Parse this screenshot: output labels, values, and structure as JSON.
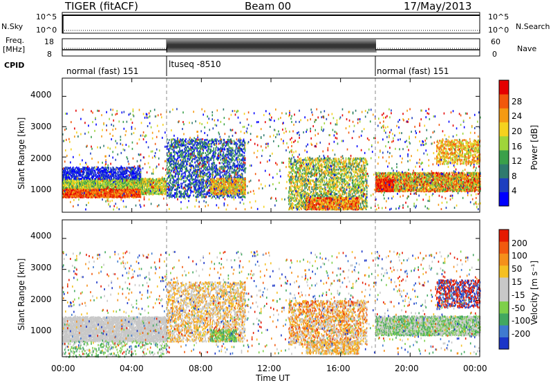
{
  "header": {
    "title_left": "TIGER (fitACF)",
    "title_center": "Beam 00",
    "title_right": "17/May/2013"
  },
  "nsky_panel": {
    "label": "N.Sky",
    "ticks_left": [
      "10^5",
      "10^0"
    ],
    "ticks_right": [
      "10^5",
      "10^0"
    ],
    "right_label": "N.Search"
  },
  "freq_panel": {
    "label_line1": "Freq.",
    "label_line2": "[MHz]",
    "ticks_left": [
      "18",
      "8"
    ],
    "ticks_right": [
      "60",
      "0"
    ],
    "right_label": "Nave"
  },
  "cpid": {
    "label": "CPID",
    "segments": [
      "normal (fast) 151",
      "ltuseq -8510",
      "normal (fast) 151"
    ]
  },
  "power_panel": {
    "ylabel": "Slant Range [km]",
    "yticks": [
      "4000",
      "3000",
      "2000",
      "1000"
    ],
    "colorbar_label": "Power [dB]",
    "colorbar_ticks": [
      "28",
      "24",
      "20",
      "16",
      "12",
      "8",
      "4"
    ],
    "colors": [
      "#0000ff",
      "#1e3fbf",
      "#2f7a6e",
      "#3aa04a",
      "#9fd53a",
      "#f5d21e",
      "#f59a12",
      "#f2580c",
      "#e50000"
    ]
  },
  "velocity_panel": {
    "ylabel": "Slant Range [km]",
    "yticks": [
      "4000",
      "3000",
      "2000",
      "1000"
    ],
    "colorbar_label": "Velocity [m s⁻¹]",
    "colorbar_ticks": [
      "200",
      "100",
      "50",
      "15",
      "-15",
      "-50",
      "-100",
      "-200"
    ],
    "colors": [
      "#1a35c8",
      "#3f7ad0",
      "#42a860",
      "#7ed04a",
      "#c8c8c8",
      "#c8c8c8",
      "#f5c022",
      "#f5901a",
      "#f25a0f",
      "#e51a00"
    ]
  },
  "x_axis": {
    "ticks": [
      "00:00",
      "04:00",
      "08:00",
      "12:00",
      "16:00",
      "20:00",
      "00:00"
    ],
    "label": "Time UT"
  },
  "chart_data": {
    "type": "heatmap",
    "x_range_hours": [
      0,
      24
    ],
    "y_range_km": [
      180,
      4600
    ],
    "mode_changes_hours": [
      6,
      18
    ],
    "panels": [
      "Power [dB]",
      "Velocity [m s⁻¹]"
    ],
    "power_scale_db": [
      0,
      30
    ],
    "velocity_scale_ms": [
      -250,
      250
    ]
  }
}
